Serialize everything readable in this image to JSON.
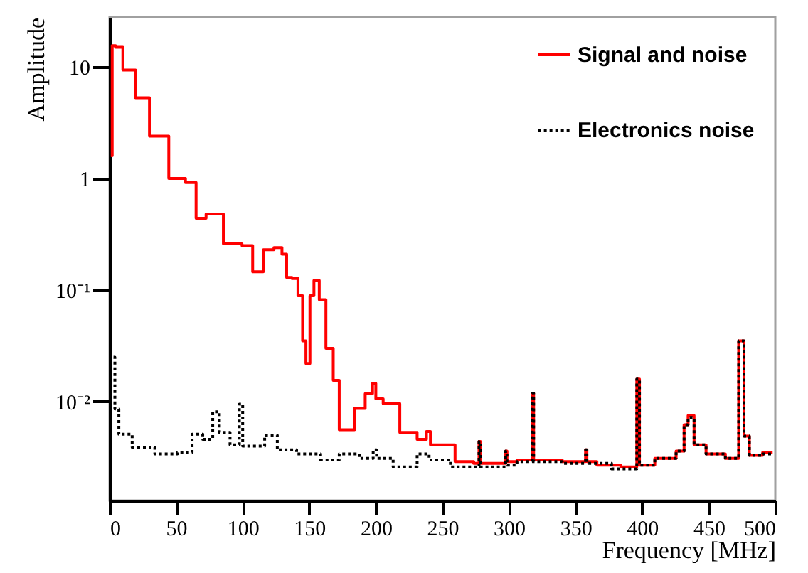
{
  "chart_data": {
    "type": "step",
    "xlabel": "Frequency [MHz]",
    "ylabel": "Amplitude",
    "log": "y",
    "grid": false,
    "legend": "top right",
    "xlim": [
      0,
      500
    ],
    "xticks": [
      0,
      50,
      100,
      150,
      200,
      250,
      300,
      350,
      400,
      450,
      500
    ],
    "ylim": [
      0.0013,
      28
    ],
    "yticks": [
      {
        "value": 0.01,
        "label": "10⁻²"
      },
      {
        "value": 0.1,
        "label": "10⁻¹"
      },
      1,
      10
    ],
    "series": [
      {
        "name": "Signal and noise",
        "color": "#ff0000",
        "line_style": "solid",
        "x": [
          1,
          3,
          6,
          14,
          25,
          35,
          54,
          60,
          70,
          75,
          96,
          103,
          112,
          119,
          128,
          131,
          135,
          139,
          144,
          146,
          149,
          152,
          155,
          160,
          165,
          171,
          174,
          180,
          188,
          196,
          199,
          201,
          210,
          226,
          236,
          240,
          242,
          249,
          270,
          277,
          278,
          279,
          297,
          298,
          299,
          313,
          317,
          318,
          319,
          323,
          357,
          358,
          359,
          373,
          395,
          397,
          399,
          420,
          431,
          432,
          437,
          441,
          455,
          470,
          475,
          478,
          483,
          498
        ],
        "values": [
          1.6,
          15.5,
          15,
          9.4,
          5.3,
          2.4,
          1.0,
          0.92,
          0.44,
          0.48,
          0.26,
          0.25,
          0.146,
          0.23,
          0.24,
          0.21,
          0.13,
          0.127,
          0.089,
          0.035,
          0.022,
          0.089,
          0.122,
          0.082,
          0.03,
          0.0155,
          0.0056,
          0.0056,
          0.0087,
          0.0118,
          0.0146,
          0.0106,
          0.0096,
          0.0053,
          0.0046,
          0.0054,
          0.0041,
          0.0041,
          0.0029,
          0.0028,
          0.0044,
          0.0028,
          0.0028,
          0.0036,
          0.0029,
          0.003,
          0.003,
          0.0119,
          0.003,
          0.003,
          0.0029,
          0.0037,
          0.0029,
          0.0027,
          0.0026,
          0.0159,
          0.0027,
          0.0031,
          0.0036,
          0.0062,
          0.0075,
          0.0041,
          0.0034,
          0.0031,
          0.035,
          0.0049,
          0.0033,
          0.0035
        ]
      },
      {
        "name": "Electronics noise",
        "color": "#000000",
        "line_style": "dotted",
        "x": [
          3,
          5,
          9,
          25,
          43,
          59,
          65,
          75,
          80,
          85,
          96,
          99,
          101,
          112,
          121,
          131,
          150,
          167,
          178,
          197,
          199,
          202,
          224,
          238,
          242,
          270,
          277,
          278,
          279,
          297,
          298,
          299,
          313,
          317,
          318,
          319,
          323,
          357,
          358,
          359,
          395,
          397,
          399,
          420,
          431,
          432,
          437,
          441,
          455,
          470,
          475,
          478,
          483,
          498
        ],
        "values": [
          0.025,
          0.0086,
          0.0051,
          0.0039,
          0.0034,
          0.0035,
          0.0051,
          0.0046,
          0.0081,
          0.0053,
          0.0041,
          0.0095,
          0.004,
          0.004,
          0.005,
          0.0037,
          0.0034,
          0.003,
          0.0034,
          0.0031,
          0.0037,
          0.0031,
          0.0026,
          0.0034,
          0.003,
          0.0026,
          0.0026,
          0.0044,
          0.0026,
          0.0026,
          0.0036,
          0.0027,
          0.0029,
          0.0029,
          0.0119,
          0.0029,
          0.0029,
          0.0028,
          0.0037,
          0.0028,
          0.0025,
          0.0159,
          0.0027,
          0.0031,
          0.0036,
          0.0062,
          0.0072,
          0.0041,
          0.0034,
          0.0031,
          0.035,
          0.0049,
          0.0033,
          0.0034
        ]
      }
    ]
  }
}
